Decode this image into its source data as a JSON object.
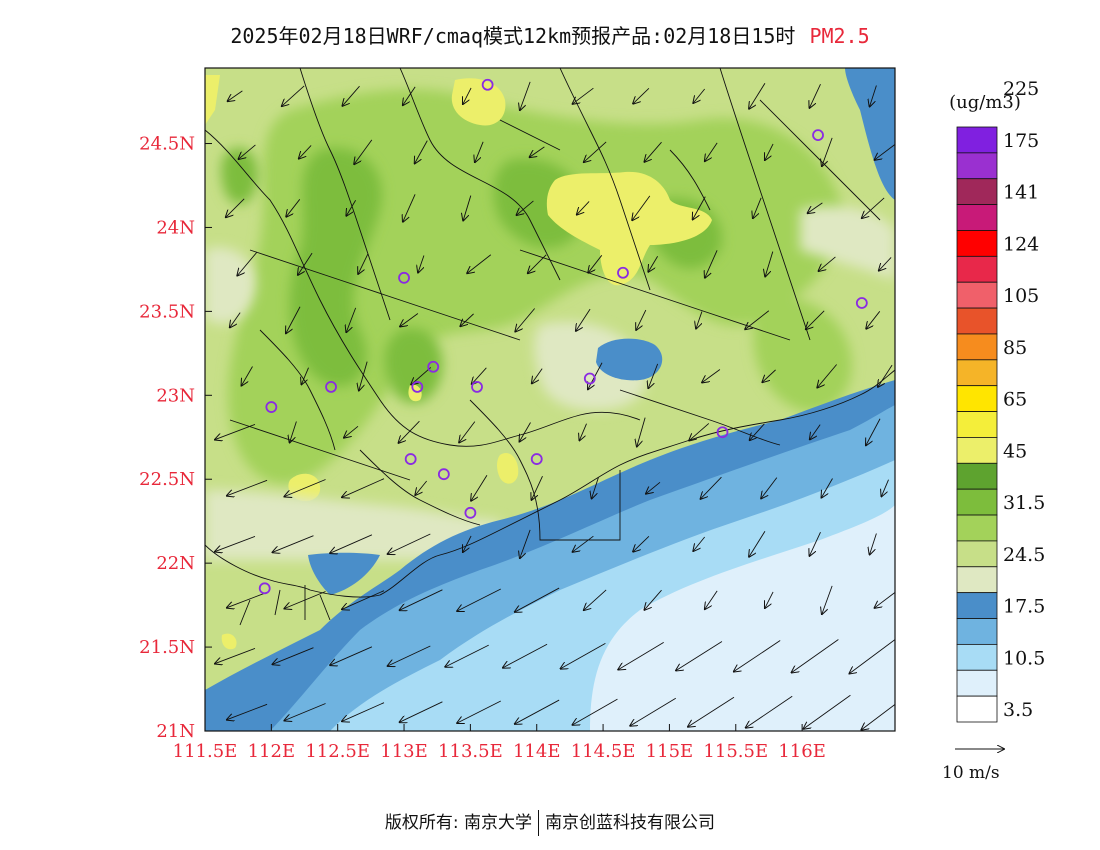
{
  "title": {
    "main": "2025年02月18日WRF/cmaq模式12km预报产品:02月18日15时",
    "variable": "PM2.5"
  },
  "map": {
    "lon_range": [
      111.5,
      116.7
    ],
    "lat_range": [
      21.0,
      24.95
    ],
    "lon_ticks": [
      "111.5E",
      "112E",
      "112.5E",
      "113E",
      "113.5E",
      "114E",
      "114.5E",
      "115E",
      "115.5E",
      "116E"
    ],
    "lat_ticks": [
      "21N",
      "21.5N",
      "22N",
      "22.5N",
      "23N",
      "23.5N",
      "24N",
      "24.5N"
    ],
    "tick_color": "#e8283a",
    "stations": [
      [
        113.63,
        24.85
      ],
      [
        116.12,
        24.55
      ],
      [
        113.0,
        23.7
      ],
      [
        114.65,
        23.73
      ],
      [
        116.45,
        23.55
      ],
      [
        113.22,
        23.17
      ],
      [
        112.45,
        23.05
      ],
      [
        113.1,
        23.05
      ],
      [
        113.55,
        23.05
      ],
      [
        114.4,
        23.1
      ],
      [
        112.0,
        22.93
      ],
      [
        115.4,
        22.78
      ],
      [
        113.05,
        22.62
      ],
      [
        114.0,
        22.62
      ],
      [
        113.3,
        22.53
      ],
      [
        113.5,
        22.3
      ],
      [
        111.95,
        21.85
      ]
    ],
    "station_color": "#8a2be2"
  },
  "legend": {
    "unit": "(ug/m3)",
    "colors": [
      "#ffffff",
      "#dff0fb",
      "#a8dcf5",
      "#6fb3e0",
      "#4a8ec9",
      "#dfe8c2",
      "#c7df88",
      "#a3d25a",
      "#7dbd3c",
      "#5ea32f",
      "#ecef6a",
      "#f4ee3a",
      "#ffe500",
      "#f5b428",
      "#f68c1e",
      "#e8532a",
      "#f0606a",
      "#e8284a",
      "#ff0000",
      "#c81a78",
      "#a0285a",
      "#9a30d0",
      "#8020e0"
    ],
    "labels": [
      "3.5",
      "10.5",
      "17.5",
      "24.5",
      "31.5",
      "45",
      "65",
      "85",
      "105",
      "124",
      "141",
      "175",
      "225"
    ],
    "wind_ref_label": "10 m/s"
  },
  "footer": {
    "copyright": "版权所有: 南京大学",
    "company": "南京创蓝科技有限公司"
  }
}
